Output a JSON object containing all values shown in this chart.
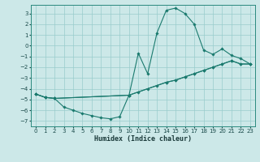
{
  "xlabel": "Humidex (Indice chaleur)",
  "background_color": "#cce8e8",
  "grid_color": "#99cccc",
  "line_color": "#1a7a6e",
  "xlim": [
    -0.5,
    23.5
  ],
  "ylim": [
    -7.5,
    3.8
  ],
  "yticks": [
    3,
    2,
    1,
    0,
    -1,
    -2,
    -3,
    -4,
    -5,
    -6,
    -7
  ],
  "xticks": [
    0,
    1,
    2,
    3,
    4,
    5,
    6,
    7,
    8,
    9,
    10,
    11,
    12,
    13,
    14,
    15,
    16,
    17,
    18,
    19,
    20,
    21,
    22,
    23
  ],
  "series": [
    {
      "x": [
        0,
        1,
        2,
        3,
        4,
        5,
        6,
        7,
        8,
        9,
        10,
        11,
        12,
        13,
        14,
        15,
        16,
        17,
        18,
        19,
        20,
        21,
        22,
        23
      ],
      "y": [
        -4.5,
        -4.8,
        -4.9,
        -5.7,
        -6.0,
        -6.3,
        -6.5,
        -6.7,
        -6.8,
        -6.6,
        -4.6,
        -0.7,
        -2.6,
        1.2,
        3.3,
        3.5,
        3.0,
        2.0,
        -0.4,
        -0.8,
        -0.3,
        -0.9,
        -1.2,
        -1.7
      ]
    },
    {
      "x": [
        0,
        1,
        2,
        10,
        14,
        15,
        16,
        17,
        18,
        19,
        20,
        21,
        22,
        23
      ],
      "y": [
        -4.5,
        -4.8,
        -4.9,
        -4.6,
        -3.4,
        -3.2,
        -2.9,
        -2.6,
        -2.3,
        -2.0,
        -1.7,
        -1.4,
        -1.7,
        -1.7
      ]
    },
    {
      "x": [
        0,
        1,
        2,
        10,
        11,
        12,
        13,
        14,
        15,
        16,
        17,
        18,
        19,
        20,
        21,
        22,
        23
      ],
      "y": [
        -4.5,
        -4.8,
        -4.9,
        -4.6,
        -4.3,
        -4.0,
        -3.7,
        -3.4,
        -3.2,
        -2.9,
        -2.6,
        -2.3,
        -2.0,
        -1.7,
        -1.4,
        -1.7,
        -1.7
      ]
    }
  ]
}
